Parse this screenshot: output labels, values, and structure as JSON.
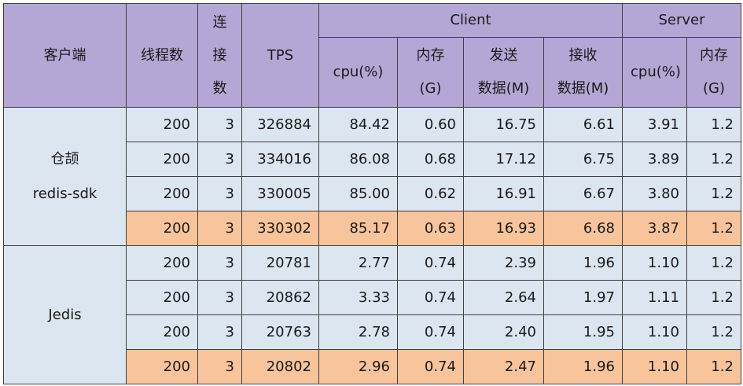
{
  "header": {
    "client_col": "客户端",
    "threads": "线程数",
    "connections": [
      "连",
      "接",
      "数"
    ],
    "tps": "TPS",
    "client_group": "Client",
    "server_group": "Server",
    "client_cpu": "cpu(%)",
    "client_mem": [
      "内存",
      "(G)"
    ],
    "client_send": [
      "发送",
      "数据(M)"
    ],
    "client_recv": [
      "接收",
      "数据(M)"
    ],
    "server_cpu": "cpu(%)",
    "server_mem": [
      "内存",
      "(G)"
    ]
  },
  "groups": [
    {
      "client_lines": [
        "仓颉",
        "redis-sdk"
      ],
      "rows": [
        {
          "threads": "200",
          "conn": "3",
          "tps": "326884",
          "ccpu": "84.42",
          "cmem": "0.60",
          "send": "16.75",
          "recv": "6.61",
          "scpu": "3.91",
          "smem": "1.2",
          "avg": false
        },
        {
          "threads": "200",
          "conn": "3",
          "tps": "334016",
          "ccpu": "86.08",
          "cmem": "0.68",
          "send": "17.12",
          "recv": "6.75",
          "scpu": "3.89",
          "smem": "1.2",
          "avg": false
        },
        {
          "threads": "200",
          "conn": "3",
          "tps": "330005",
          "ccpu": "85.00",
          "cmem": "0.62",
          "send": "16.91",
          "recv": "6.67",
          "scpu": "3.80",
          "smem": "1.2",
          "avg": false
        },
        {
          "threads": "200",
          "conn": "3",
          "tps": "330302",
          "ccpu": "85.17",
          "cmem": "0.63",
          "send": "16.93",
          "recv": "6.68",
          "scpu": "3.87",
          "smem": "1.2",
          "avg": true
        }
      ]
    },
    {
      "client_lines": [
        "Jedis"
      ],
      "rows": [
        {
          "threads": "200",
          "conn": "3",
          "tps": "20781",
          "ccpu": "2.77",
          "cmem": "0.74",
          "send": "2.39",
          "recv": "1.96",
          "scpu": "1.10",
          "smem": "1.2",
          "avg": false
        },
        {
          "threads": "200",
          "conn": "3",
          "tps": "20862",
          "ccpu": "3.33",
          "cmem": "0.74",
          "send": "2.64",
          "recv": "1.97",
          "scpu": "1.11",
          "smem": "1.2",
          "avg": false
        },
        {
          "threads": "200",
          "conn": "3",
          "tps": "20763",
          "ccpu": "2.78",
          "cmem": "0.74",
          "send": "2.40",
          "recv": "1.95",
          "scpu": "1.10",
          "smem": "1.2",
          "avg": false
        },
        {
          "threads": "200",
          "conn": "3",
          "tps": "20802",
          "ccpu": "2.96",
          "cmem": "0.74",
          "send": "2.47",
          "recv": "1.96",
          "scpu": "1.10",
          "smem": "1.2",
          "avg": true
        }
      ]
    }
  ],
  "colors": {
    "header_bg": "#b4a7d6",
    "body_bg": "#dce6f0",
    "average_row_bg": "#f8c49c",
    "border": "#3f3f3f"
  }
}
